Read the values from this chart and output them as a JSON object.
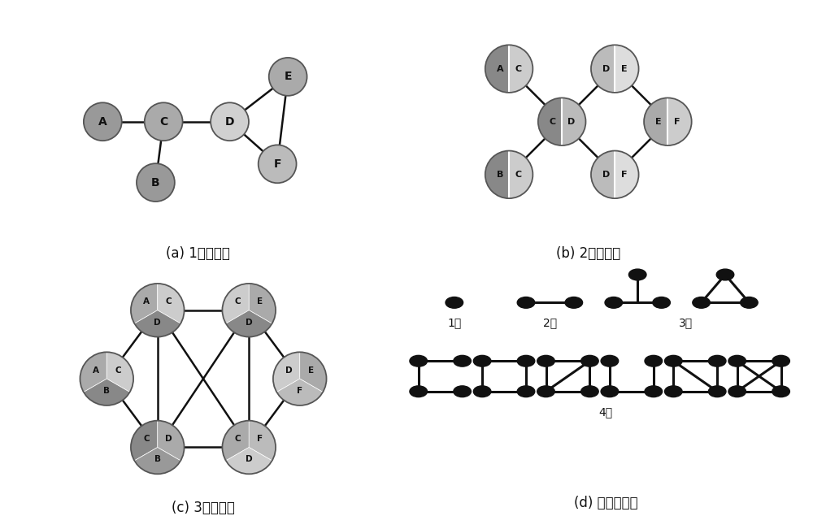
{
  "bg_color": "#ffffff",
  "edge_color": "#111111",
  "label_color": "#111111",
  "caption_a": "(a) 1阶分子图",
  "caption_b": "(b) 2阶分子图",
  "caption_c": "(c) 3阶分子图",
  "caption_d": "(d) 高阶子结构",
  "order1_label": "1阶",
  "order2_label": "2阶",
  "order3_label": "3阶",
  "order4_label": "4阶",
  "node_A": "#999999",
  "node_B": "#999999",
  "node_C": "#aaaaaa",
  "node_D": "#cccccc",
  "node_E": "#aaaaaa",
  "node_F": "#bbbbbb",
  "half_dark": "#888888",
  "half_mid": "#aaaaaa",
  "half_light": "#cccccc",
  "three_dark": "#888888",
  "three_mid": "#aaaaaa",
  "three_light": "#cccccc"
}
